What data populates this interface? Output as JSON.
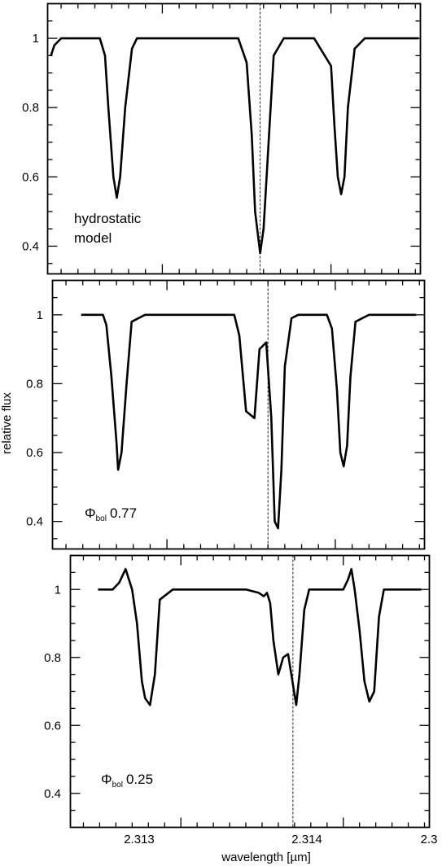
{
  "chart_data": {
    "type": "line",
    "ylabel": "relative flux",
    "xlabel": "wavelength [µm]",
    "x_tick_labels": [
      "2.313",
      "2.314",
      "2.3"
    ],
    "y_tick_labels": [
      "1",
      "0.8",
      "0.6",
      "0.4"
    ],
    "panels": [
      {
        "annotation_lines": [
          "hydrostatic",
          "model"
        ],
        "annotation_sub": "",
        "annotation_value": "",
        "ylim": [
          0.32,
          1.1
        ],
        "xlim": [
          2.31232,
          2.31453
        ],
        "vline_x": 2.31358,
        "series": [
          {
            "x": [
              2.31234,
              2.31236,
              2.3124,
              2.31246,
              2.31255,
              2.31263,
              2.31266,
              2.31268,
              2.31271,
              2.31273,
              2.31275,
              2.31278,
              2.31282,
              2.31285,
              2.3129,
              2.313,
              2.3133,
              2.31345,
              2.3135,
              2.31353,
              2.31355,
              2.31358,
              2.3136,
              2.31363,
              2.31366,
              2.31372,
              2.3139,
              2.314,
              2.31402,
              2.31404,
              2.31406,
              2.31408,
              2.3141,
              2.31414,
              2.3142,
              2.31452
            ],
            "y": [
              0.95,
              0.98,
              1.0,
              1.0,
              1.0,
              1.0,
              0.95,
              0.8,
              0.6,
              0.54,
              0.6,
              0.8,
              0.97,
              1.0,
              1.0,
              1.0,
              1.0,
              1.0,
              0.93,
              0.72,
              0.5,
              0.38,
              0.45,
              0.7,
              0.95,
              1.0,
              1.0,
              0.92,
              0.75,
              0.6,
              0.55,
              0.6,
              0.8,
              0.97,
              1.0,
              1.0
            ]
          }
        ]
      },
      {
        "annotation_lines": [],
        "annotation_sub": "bol",
        "annotation_value": "0.77",
        "ylim": [
          0.32,
          1.1
        ],
        "xlim": [
          2.31232,
          2.31453
        ],
        "vline_x": 2.3136,
        "series": [
          {
            "x": [
              2.31249,
              2.31262,
              2.31264,
              2.31267,
              2.3127,
              2.31271,
              2.31273,
              2.31276,
              2.31279,
              2.31283,
              2.31287,
              2.31293,
              2.3134,
              2.31343,
              2.31347,
              2.31352,
              2.31355,
              2.31359,
              2.31362,
              2.31364,
              2.31366,
              2.31368,
              2.3137,
              2.31374,
              2.31378,
              2.31395,
              2.31398,
              2.31401,
              2.31403,
              2.31405,
              2.31407,
              2.31409,
              2.31412,
              2.31416,
              2.3142,
              2.31448
            ],
            "y": [
              1.0,
              1.0,
              0.97,
              0.82,
              0.63,
              0.55,
              0.6,
              0.8,
              0.98,
              0.99,
              1.0,
              1.0,
              1.0,
              0.94,
              0.72,
              0.7,
              0.9,
              0.92,
              0.7,
              0.4,
              0.38,
              0.55,
              0.85,
              0.99,
              1.0,
              1.0,
              0.96,
              0.78,
              0.6,
              0.56,
              0.62,
              0.82,
              0.98,
              0.99,
              1.0,
              1.0
            ]
          }
        ]
      },
      {
        "annotation_lines": [],
        "annotation_sub": "bol",
        "annotation_value": "0.25",
        "ylim": [
          0.3,
          1.1
        ],
        "xlim": [
          2.31232,
          2.31453
        ],
        "vline_x": 2.31369,
        "series": [
          {
            "x": [
              2.31249,
              2.31258,
              2.31262,
              2.31266,
              2.3127,
              2.31273,
              2.31276,
              2.31278,
              2.31281,
              2.31284,
              2.31287,
              2.31295,
              2.3134,
              2.31348,
              2.31351,
              2.31353,
              2.31355,
              2.31357,
              2.3136,
              2.31363,
              2.31366,
              2.31369,
              2.31371,
              2.31373,
              2.31376,
              2.31379,
              2.31384,
              2.314,
              2.31403,
              2.31405,
              2.31407,
              2.3141,
              2.31413,
              2.31416,
              2.31419,
              2.31422,
              2.31425,
              2.31448
            ],
            "y": [
              1.0,
              1.0,
              1.02,
              1.06,
              1.0,
              0.9,
              0.73,
              0.68,
              0.66,
              0.75,
              0.97,
              1.0,
              1.0,
              0.99,
              0.98,
              0.99,
              0.96,
              0.85,
              0.75,
              0.8,
              0.81,
              0.72,
              0.66,
              0.75,
              0.94,
              1.0,
              1.0,
              1.0,
              1.03,
              1.06,
              1.0,
              0.88,
              0.73,
              0.67,
              0.7,
              0.92,
              1.0,
              1.0
            ]
          }
        ]
      }
    ]
  }
}
